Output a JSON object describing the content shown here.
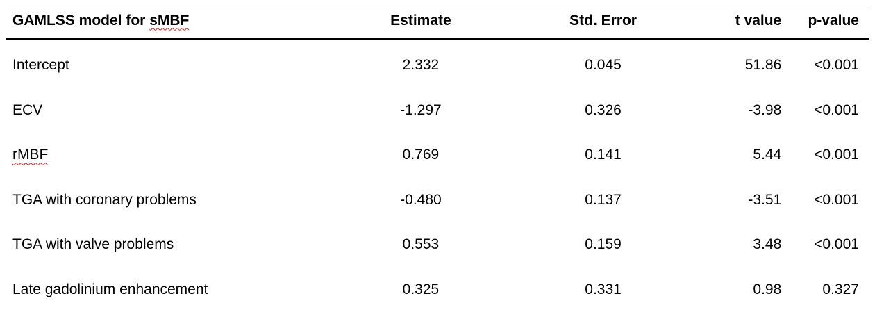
{
  "table": {
    "header": {
      "model_prefix": "GAMLSS model for ",
      "model_term": "sMBF",
      "estimate": "Estimate",
      "std_error": "Std. Error",
      "t_value": "t value",
      "p_value": "p-value"
    },
    "rows": [
      {
        "label": "Intercept",
        "estimate": "2.332",
        "std_error": "0.045",
        "t_value": "51.86",
        "p_value": "<0.001"
      },
      {
        "label": "ECV",
        "estimate": "-1.297",
        "std_error": "0.326",
        "t_value": "-3.98",
        "p_value": "<0.001"
      },
      {
        "label": "rMBF",
        "estimate": "0.769",
        "std_error": "0.141",
        "t_value": "5.44",
        "p_value": "<0.001"
      },
      {
        "label": "TGA with coronary problems",
        "estimate": "-0.480",
        "std_error": "0.137",
        "t_value": "-3.51",
        "p_value": "<0.001"
      },
      {
        "label": "TGA with valve problems",
        "estimate": "0.553",
        "std_error": "0.159",
        "t_value": "3.48",
        "p_value": "<0.001"
      },
      {
        "label": "Late gadolinium enhancement",
        "estimate": "0.325",
        "std_error": "0.331",
        "t_value": "0.98",
        "p_value": "0.327"
      }
    ]
  }
}
